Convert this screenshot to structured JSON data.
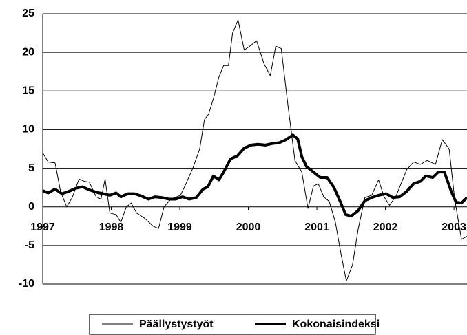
{
  "chart_data": {
    "type": "line",
    "xlim": [
      1997,
      2003.19
    ],
    "xticks": [
      1997,
      1998,
      1999,
      2000,
      2001,
      2002,
      2003
    ],
    "ylim": [
      -10,
      25
    ],
    "yticks": [
      -10,
      -5,
      0,
      5,
      10,
      15,
      20,
      25
    ],
    "grid": true,
    "series": [
      {
        "name": "Päällystystyöt",
        "color": "#000000",
        "width": 1,
        "x": [
          1997.0,
          1997.08,
          1997.18,
          1997.26,
          1997.35,
          1997.43,
          1997.53,
          1997.61,
          1997.68,
          1997.78,
          1997.85,
          1997.91,
          1997.98,
          1998.07,
          1998.14,
          1998.22,
          1998.29,
          1998.37,
          1998.49,
          1998.61,
          1998.69,
          1998.77,
          1998.87,
          1999.01,
          1999.09,
          1999.19,
          1999.29,
          1999.36,
          1999.42,
          1999.49,
          1999.57,
          1999.64,
          1999.71,
          1999.77,
          1999.85,
          1999.94,
          2000.02,
          2000.12,
          2000.23,
          2000.32,
          2000.4,
          2000.48,
          2000.58,
          2000.68,
          2000.78,
          2000.87,
          2000.95,
          2001.02,
          2001.1,
          2001.18,
          2001.27,
          2001.35,
          2001.43,
          2001.52,
          2001.6,
          2001.7,
          2001.8,
          2001.9,
          2001.98,
          2002.06,
          2002.16,
          2002.31,
          2002.41,
          2002.51,
          2002.61,
          2002.73,
          2002.83,
          2002.93,
          2003.01,
          2003.11,
          2003.19
        ],
        "values": [
          7,
          5.8,
          5.7,
          2,
          0,
          1.2,
          3.6,
          3.3,
          3.2,
          1.3,
          1,
          3.6,
          -0.8,
          -1,
          -2,
          0,
          0.5,
          -0.8,
          -1.5,
          -2.5,
          -2.8,
          0,
          1,
          1.5,
          3,
          5,
          7.5,
          11.3,
          12,
          14,
          16.8,
          18.3,
          18.3,
          22.5,
          24.2,
          20.3,
          20.8,
          21.5,
          18.5,
          17,
          20.8,
          20.5,
          13,
          6,
          4.5,
          -0.2,
          2.7,
          3,
          1.3,
          0.7,
          -2,
          -6,
          -9.6,
          -7.5,
          -3,
          1.2,
          1.5,
          3.5,
          1.3,
          0.2,
          1.5,
          4.8,
          5.8,
          5.5,
          6,
          5.5,
          8.7,
          7.5,
          1,
          -4.2,
          -3.8
        ]
      },
      {
        "name": "Kokonaisindeksi",
        "color": "#000000",
        "width": 4,
        "x": [
          1997.0,
          1997.08,
          1997.18,
          1997.28,
          1997.38,
          1997.48,
          1997.58,
          1997.68,
          1997.78,
          1997.88,
          1997.98,
          1998.07,
          1998.14,
          1998.24,
          1998.34,
          1998.44,
          1998.54,
          1998.64,
          1998.74,
          1998.84,
          1998.94,
          1999.04,
          1999.14,
          1999.24,
          1999.34,
          1999.41,
          1999.49,
          1999.57,
          1999.64,
          1999.74,
          1999.84,
          1999.94,
          2000.04,
          2000.14,
          2000.25,
          2000.35,
          2000.45,
          2000.55,
          2000.65,
          2000.72,
          2000.78,
          2000.85,
          2000.95,
          2001.05,
          2001.15,
          2001.25,
          2001.35,
          2001.42,
          2001.5,
          2001.6,
          2001.7,
          2001.8,
          2001.9,
          2002.01,
          2002.11,
          2002.21,
          2002.31,
          2002.41,
          2002.51,
          2002.59,
          2002.69,
          2002.77,
          2002.86,
          2002.96,
          2003.03,
          2003.11,
          2003.19
        ],
        "values": [
          2.1,
          1.8,
          2.3,
          1.7,
          2,
          2.4,
          2.6,
          2.2,
          1.9,
          1.7,
          1.5,
          1.8,
          1.3,
          1.7,
          1.7,
          1.4,
          1.0,
          1.3,
          1.2,
          1.0,
          1.0,
          1.3,
          1.0,
          1.2,
          2.3,
          2.6,
          4,
          3.5,
          4.5,
          6.2,
          6.6,
          7.6,
          8,
          8.1,
          8,
          8.2,
          8.3,
          8.7,
          9.3,
          8.8,
          6.5,
          5.2,
          4.5,
          3.8,
          3.8,
          2.5,
          0.5,
          -1,
          -1.2,
          -0.5,
          0.8,
          1.2,
          1.5,
          1.7,
          1.2,
          1.3,
          2,
          3,
          3.3,
          4,
          3.8,
          4.5,
          4.5,
          2,
          0.6,
          0.5,
          1.2
        ]
      }
    ]
  }
}
